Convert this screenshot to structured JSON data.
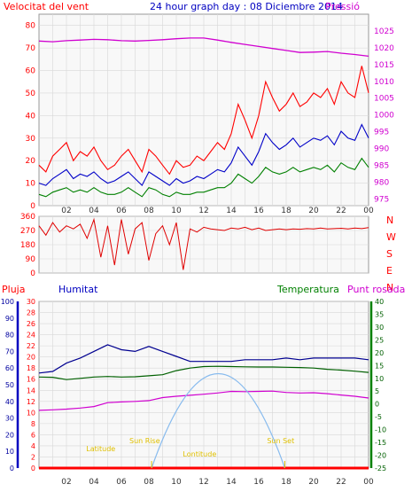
{
  "colors": {
    "plot_bg": "#f8f8f8",
    "grid": "#d8d8d8",
    "frame": "#999999",
    "wind_gust": "#ff0000",
    "wind_avg": "#0000c8",
    "wind_low": "#008000",
    "pressure": "#d000d0",
    "direction": "#e00000",
    "rain": "#ff0000",
    "humidity": "#000090",
    "temperature": "#006000",
    "dewpoint": "#d000d0",
    "sun_arc": "#88bbee",
    "sun_label": "#e0c000",
    "title": "#0000c0",
    "label_red": "#ff0000",
    "label_blue": "#0000c0",
    "label_green": "#008000",
    "label_magenta": "#d000d0"
  },
  "header": {
    "left": "Velocitat del vent",
    "center": "24 hour graph day : 08 Diciembre 2014",
    "right": "Pressió"
  },
  "bottom_labels": {
    "rain": "Pluja",
    "humidity": "Humitat",
    "temperature": "Temperatura",
    "dewpoint": "Punt rosada"
  },
  "x_tick_labels": [
    "02",
    "04",
    "06",
    "08",
    "10",
    "12",
    "14",
    "16",
    "18",
    "20",
    "22",
    "00"
  ],
  "chart_data": [
    {
      "type": "line",
      "x_range": [
        0,
        24
      ],
      "left_ticks": [
        0,
        10,
        20,
        30,
        40,
        50,
        60,
        70,
        80
      ],
      "left_range": [
        0,
        85
      ],
      "right_ticks": [
        975,
        980,
        985,
        990,
        995,
        1000,
        1005,
        1010,
        1015,
        1020,
        1025
      ],
      "right_range": [
        973,
        1030
      ],
      "series": [
        {
          "axis": "right",
          "color_key": "pressure",
          "x": [
            0,
            1,
            2,
            3,
            4,
            5,
            6,
            7,
            8,
            9,
            10,
            11,
            12,
            13,
            14,
            15,
            16,
            17,
            18,
            19,
            20,
            21,
            22,
            23,
            24
          ],
          "values": [
            1022,
            1021.8,
            1022.1,
            1022.3,
            1022.5,
            1022.4,
            1022.1,
            1022.0,
            1022.2,
            1022.4,
            1022.7,
            1022.9,
            1022.9,
            1022.3,
            1021.6,
            1021.0,
            1020.4,
            1019.8,
            1019.2,
            1018.6,
            1018.7,
            1018.9,
            1018.4,
            1018.0,
            1017.5
          ]
        },
        {
          "axis": "left",
          "color_key": "wind_gust",
          "x": [
            0,
            0.5,
            1,
            1.5,
            2,
            2.5,
            3,
            3.5,
            4,
            4.5,
            5,
            5.5,
            6,
            6.5,
            7,
            7.5,
            8,
            8.5,
            9,
            9.5,
            10,
            10.5,
            11,
            11.5,
            12,
            12.5,
            13,
            13.5,
            14,
            14.5,
            15,
            15.5,
            16,
            16.5,
            17,
            17.5,
            18,
            18.5,
            19,
            19.5,
            20,
            20.5,
            21,
            21.5,
            22,
            22.5,
            23,
            23.5,
            24
          ],
          "values": [
            18,
            15,
            22,
            25,
            28,
            20,
            24,
            22,
            26,
            20,
            16,
            18,
            22,
            25,
            20,
            15,
            25,
            22,
            18,
            14,
            20,
            17,
            18,
            22,
            20,
            24,
            28,
            25,
            32,
            45,
            38,
            30,
            40,
            55,
            48,
            42,
            45,
            50,
            44,
            46,
            50,
            48,
            52,
            45,
            55,
            50,
            48,
            62,
            50
          ]
        },
        {
          "axis": "left",
          "color_key": "wind_avg",
          "x": [
            0,
            0.5,
            1,
            1.5,
            2,
            2.5,
            3,
            3.5,
            4,
            4.5,
            5,
            5.5,
            6,
            6.5,
            7,
            7.5,
            8,
            8.5,
            9,
            9.5,
            10,
            10.5,
            11,
            11.5,
            12,
            12.5,
            13,
            13.5,
            14,
            14.5,
            15,
            15.5,
            16,
            16.5,
            17,
            17.5,
            18,
            18.5,
            19,
            19.5,
            20,
            20.5,
            21,
            21.5,
            22,
            22.5,
            23,
            23.5,
            24
          ],
          "values": [
            10,
            9,
            12,
            14,
            16,
            12,
            14,
            13,
            15,
            12,
            10,
            11,
            13,
            15,
            12,
            9,
            15,
            13,
            11,
            9,
            12,
            10,
            11,
            13,
            12,
            14,
            16,
            15,
            19,
            26,
            22,
            18,
            24,
            32,
            28,
            25,
            27,
            30,
            26,
            28,
            30,
            29,
            31,
            27,
            33,
            30,
            29,
            36,
            30
          ]
        },
        {
          "axis": "left",
          "color_key": "wind_low",
          "x": [
            0,
            0.5,
            1,
            1.5,
            2,
            2.5,
            3,
            3.5,
            4,
            4.5,
            5,
            5.5,
            6,
            6.5,
            7,
            7.5,
            8,
            8.5,
            9,
            9.5,
            10,
            10.5,
            11,
            11.5,
            12,
            12.5,
            13,
            13.5,
            14,
            14.5,
            15,
            15.5,
            16,
            16.5,
            17,
            17.5,
            18,
            18.5,
            19,
            19.5,
            20,
            20.5,
            21,
            21.5,
            22,
            22.5,
            23,
            23.5,
            24
          ],
          "values": [
            5,
            4,
            6,
            7,
            8,
            6,
            7,
            6,
            8,
            6,
            5,
            5,
            6,
            8,
            6,
            4,
            8,
            7,
            5,
            4,
            6,
            5,
            5,
            6,
            6,
            7,
            8,
            8,
            10,
            14,
            12,
            10,
            13,
            17,
            15,
            14,
            15,
            17,
            15,
            16,
            17,
            16,
            18,
            15,
            19,
            17,
            16,
            21,
            17
          ]
        }
      ]
    },
    {
      "type": "line",
      "x_range": [
        0,
        24
      ],
      "left_ticks": [
        0,
        90,
        180,
        270,
        360
      ],
      "left_range": [
        0,
        360
      ],
      "right_ticks": [
        "N",
        "W",
        "S",
        "E",
        "N"
      ],
      "series": [
        {
          "color_key": "direction",
          "x": [
            0,
            0.5,
            1,
            1.5,
            2,
            2.5,
            3,
            3.5,
            4,
            4.5,
            5,
            5.5,
            6,
            6.5,
            7,
            7.5,
            8,
            8.5,
            9,
            9.5,
            10,
            10.5,
            11,
            11.5,
            12,
            12.5,
            13,
            13.5,
            14,
            14.5,
            15,
            15.5,
            16,
            16.5,
            17,
            17.5,
            18,
            18.5,
            19,
            19.5,
            20,
            20.5,
            21,
            21.5,
            22,
            22.5,
            23,
            23.5,
            24
          ],
          "values": [
            300,
            240,
            320,
            260,
            300,
            280,
            310,
            220,
            340,
            100,
            300,
            50,
            340,
            120,
            280,
            320,
            80,
            250,
            300,
            180,
            320,
            20,
            280,
            260,
            290,
            280,
            275,
            270,
            285,
            280,
            290,
            275,
            285,
            270,
            275,
            280,
            275,
            280,
            278,
            282,
            280,
            285,
            280,
            282,
            284,
            280,
            285,
            282,
            288
          ]
        }
      ]
    },
    {
      "type": "line",
      "x_range": [
        0,
        24
      ],
      "rain_ticks": [
        0,
        2,
        4,
        6,
        8,
        10,
        12,
        14,
        16,
        18,
        20,
        22,
        24,
        26,
        28,
        30
      ],
      "rain_range": [
        0,
        30
      ],
      "humidity_ticks": [
        0,
        10,
        20,
        30,
        40,
        50,
        60,
        70,
        80,
        90,
        100
      ],
      "humidity_range": [
        0,
        100
      ],
      "temp_ticks": [
        -25,
        -20,
        -15,
        -10,
        -5,
        0,
        5,
        10,
        15,
        20,
        25,
        30,
        35,
        40
      ],
      "temp_range": [
        -25,
        40
      ],
      "series": [
        {
          "name": "Humitat",
          "color_key": "humidity",
          "axis": "humidity",
          "x": [
            0,
            1,
            2,
            3,
            4,
            5,
            6,
            7,
            8,
            9,
            10,
            11,
            12,
            13,
            14,
            15,
            16,
            17,
            18,
            19,
            20,
            21,
            22,
            23,
            24
          ],
          "values": [
            57,
            58,
            63,
            66,
            70,
            74,
            71,
            70,
            73,
            70,
            67,
            64,
            64,
            64,
            64,
            65,
            65,
            65,
            66,
            65,
            66,
            66,
            66,
            66,
            65
          ]
        },
        {
          "name": "Temperatura",
          "color_key": "temperature",
          "axis": "temp",
          "x": [
            0,
            1,
            2,
            3,
            4,
            5,
            6,
            7,
            8,
            9,
            10,
            11,
            12,
            13,
            14,
            15,
            16,
            17,
            18,
            19,
            20,
            21,
            22,
            23,
            24
          ],
          "values": [
            10.5,
            10.4,
            9.5,
            10,
            10.5,
            10.7,
            10.5,
            10.6,
            11,
            11.4,
            13,
            14,
            14.6,
            14.7,
            14.6,
            14.5,
            14.4,
            14.4,
            14.3,
            14.2,
            14,
            13.5,
            13.2,
            12.8,
            12.3
          ]
        },
        {
          "name": "Punt rosada",
          "color_key": "dewpoint",
          "axis": "temp",
          "x": [
            0,
            1,
            2,
            3,
            4,
            5,
            6,
            7,
            8,
            9,
            10,
            11,
            12,
            13,
            14,
            15,
            16,
            17,
            18,
            19,
            20,
            21,
            22,
            23,
            24
          ],
          "values": [
            -2.5,
            -2.3,
            -2,
            -1.6,
            -1,
            0.5,
            0.8,
            1,
            1.3,
            2.5,
            3,
            3.4,
            3.8,
            4.3,
            4.9,
            4.8,
            4.9,
            5,
            4.5,
            4.3,
            4.4,
            4,
            3.5,
            3,
            2.3
          ]
        },
        {
          "name": "Pluja",
          "color_key": "rain",
          "axis": "rain",
          "x": [
            0,
            24
          ],
          "values": [
            0,
            0
          ]
        }
      ],
      "sun": {
        "sunrise_hour": 8.2,
        "sunset_hour": 17.9,
        "noon_hour": 13.05,
        "altitude_peak_mm": 17,
        "labels": {
          "latitude": "Latitude",
          "sunrise": "Sun Rise",
          "longitude": "Lontitude",
          "sunset": "Sun Set"
        }
      }
    }
  ]
}
